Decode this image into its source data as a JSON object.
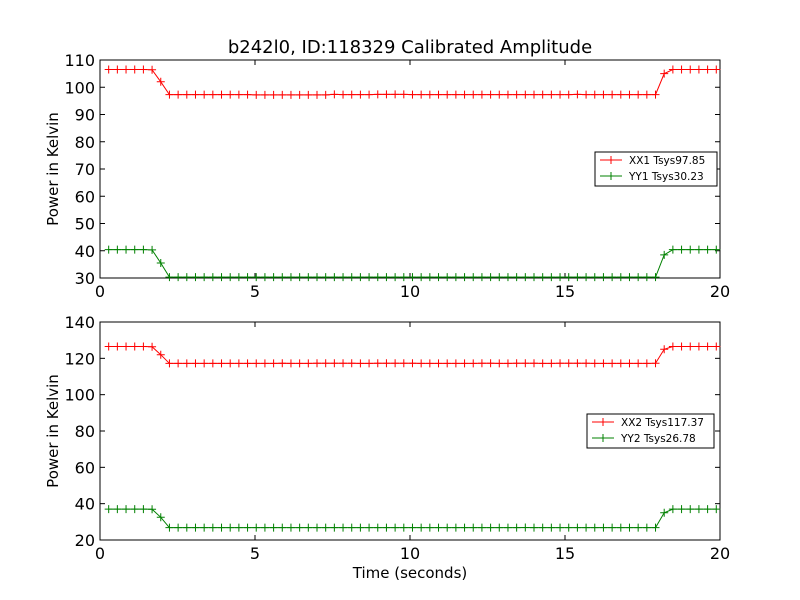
{
  "figure": {
    "title": "b242l0, ID:118329 Calibrated Amplitude",
    "xlabel": "Time (seconds)"
  },
  "chart_data": [
    {
      "type": "line",
      "ylabel": "Power in Kelvin",
      "xlabel": "",
      "xlim": [
        0,
        20
      ],
      "ylim": [
        30,
        110
      ],
      "xticks": [
        0,
        5,
        10,
        15,
        20
      ],
      "yticks": [
        30,
        40,
        50,
        60,
        70,
        80,
        90,
        100,
        110
      ],
      "grid": false,
      "legend_position": "right",
      "series": [
        {
          "name": "XX1 Tsys97.85",
          "color": "#ff0000",
          "marker": "plus",
          "x": [
            0.28,
            0.56,
            0.84,
            1.12,
            1.4,
            1.68,
            1.96,
            2.24,
            2.52,
            2.8,
            3.08,
            3.36,
            3.64,
            3.92,
            4.2,
            4.48,
            4.76,
            5.04,
            5.32,
            5.6,
            5.88,
            6.16,
            6.44,
            6.72,
            7.0,
            7.28,
            7.56,
            7.84,
            8.12,
            8.4,
            8.68,
            8.96,
            9.24,
            9.52,
            9.8,
            10.08,
            10.36,
            10.64,
            10.92,
            11.2,
            11.48,
            11.76,
            12.04,
            12.32,
            12.6,
            12.88,
            13.16,
            13.44,
            13.72,
            14.0,
            14.28,
            14.56,
            14.84,
            15.12,
            15.4,
            15.68,
            15.96,
            16.24,
            16.52,
            16.8,
            17.08,
            17.36,
            17.64,
            17.92,
            18.2,
            18.48,
            18.76,
            19.04,
            19.32,
            19.6,
            19.88
          ],
          "y": [
            106.5,
            106.5,
            106.5,
            106.5,
            106.5,
            106.4,
            102.0,
            97.3,
            97.3,
            97.3,
            97.3,
            97.3,
            97.3,
            97.3,
            97.3,
            97.3,
            97.3,
            97.2,
            97.2,
            97.2,
            97.2,
            97.2,
            97.2,
            97.2,
            97.2,
            97.2,
            97.4,
            97.3,
            97.3,
            97.3,
            97.3,
            97.4,
            97.4,
            97.4,
            97.4,
            97.3,
            97.3,
            97.3,
            97.3,
            97.3,
            97.3,
            97.3,
            97.3,
            97.3,
            97.3,
            97.3,
            97.3,
            97.3,
            97.3,
            97.3,
            97.3,
            97.3,
            97.3,
            97.3,
            97.4,
            97.3,
            97.3,
            97.3,
            97.3,
            97.3,
            97.3,
            97.3,
            97.3,
            97.3,
            105.0,
            106.5,
            106.5,
            106.5,
            106.5,
            106.5,
            106.5
          ]
        },
        {
          "name": "YY1 Tsys30.23",
          "color": "#008000",
          "marker": "plus",
          "x": [
            0.28,
            0.56,
            0.84,
            1.12,
            1.4,
            1.68,
            1.96,
            2.24,
            2.52,
            2.8,
            3.08,
            3.36,
            3.64,
            3.92,
            4.2,
            4.48,
            4.76,
            5.04,
            5.32,
            5.6,
            5.88,
            6.16,
            6.44,
            6.72,
            7.0,
            7.28,
            7.56,
            7.84,
            8.12,
            8.4,
            8.68,
            8.96,
            9.24,
            9.52,
            9.8,
            10.08,
            10.36,
            10.64,
            10.92,
            11.2,
            11.48,
            11.76,
            12.04,
            12.32,
            12.6,
            12.88,
            13.16,
            13.44,
            13.72,
            14.0,
            14.28,
            14.56,
            14.84,
            15.12,
            15.4,
            15.68,
            15.96,
            16.24,
            16.52,
            16.8,
            17.08,
            17.36,
            17.64,
            17.92,
            18.2,
            18.48,
            18.76,
            19.04,
            19.32,
            19.6,
            19.88
          ],
          "y": [
            40.4,
            40.4,
            40.4,
            40.4,
            40.4,
            40.3,
            35.5,
            30.3,
            30.3,
            30.3,
            30.3,
            30.3,
            30.3,
            30.3,
            30.3,
            30.3,
            30.3,
            30.3,
            30.3,
            30.3,
            30.3,
            30.3,
            30.3,
            30.3,
            30.3,
            30.3,
            30.3,
            30.3,
            30.3,
            30.3,
            30.3,
            30.3,
            30.3,
            30.3,
            30.3,
            30.3,
            30.3,
            30.3,
            30.3,
            30.3,
            30.3,
            30.3,
            30.3,
            30.3,
            30.3,
            30.3,
            30.3,
            30.3,
            30.3,
            30.3,
            30.3,
            30.3,
            30.3,
            30.3,
            30.3,
            30.3,
            30.3,
            30.3,
            30.3,
            30.3,
            30.3,
            30.3,
            30.3,
            30.3,
            38.5,
            40.4,
            40.4,
            40.4,
            40.4,
            40.4,
            40.4
          ]
        }
      ]
    },
    {
      "type": "line",
      "ylabel": "Power in Kelvin",
      "xlabel": "Time (seconds)",
      "xlim": [
        0,
        20
      ],
      "ylim": [
        20,
        140
      ],
      "xticks": [
        0,
        5,
        10,
        15,
        20
      ],
      "yticks": [
        20,
        40,
        60,
        80,
        100,
        120,
        140
      ],
      "grid": false,
      "legend_position": "right",
      "series": [
        {
          "name": "XX2 Tsys117.37",
          "color": "#ff0000",
          "marker": "plus",
          "x": [
            0.28,
            0.56,
            0.84,
            1.12,
            1.4,
            1.68,
            1.96,
            2.24,
            2.52,
            2.8,
            3.08,
            3.36,
            3.64,
            3.92,
            4.2,
            4.48,
            4.76,
            5.04,
            5.32,
            5.6,
            5.88,
            6.16,
            6.44,
            6.72,
            7.0,
            7.28,
            7.56,
            7.84,
            8.12,
            8.4,
            8.68,
            8.96,
            9.24,
            9.52,
            9.8,
            10.08,
            10.36,
            10.64,
            10.92,
            11.2,
            11.48,
            11.76,
            12.04,
            12.32,
            12.6,
            12.88,
            13.16,
            13.44,
            13.72,
            14.0,
            14.28,
            14.56,
            14.84,
            15.12,
            15.4,
            15.68,
            15.96,
            16.24,
            16.52,
            16.8,
            17.08,
            17.36,
            17.64,
            17.92,
            18.2,
            18.48,
            18.76,
            19.04,
            19.32,
            19.6,
            19.88
          ],
          "y": [
            126.5,
            126.5,
            126.5,
            126.5,
            126.5,
            126.4,
            122.0,
            117.2,
            117.2,
            117.2,
            117.2,
            117.2,
            117.2,
            117.2,
            117.2,
            117.2,
            117.2,
            117.2,
            117.2,
            117.2,
            117.3,
            117.2,
            117.2,
            117.2,
            117.3,
            117.3,
            117.3,
            117.3,
            117.3,
            117.2,
            117.2,
            117.3,
            117.3,
            117.3,
            117.3,
            117.3,
            117.2,
            117.2,
            117.2,
            117.2,
            117.2,
            117.2,
            117.2,
            117.3,
            117.3,
            117.2,
            117.2,
            117.3,
            117.3,
            117.3,
            117.2,
            117.2,
            117.3,
            117.3,
            117.3,
            117.3,
            117.2,
            117.2,
            117.2,
            117.2,
            117.2,
            117.2,
            117.2,
            117.3,
            125.0,
            126.5,
            126.5,
            126.5,
            126.5,
            126.5,
            126.5
          ]
        },
        {
          "name": "YY2 Tsys26.78",
          "color": "#008000",
          "marker": "plus",
          "x": [
            0.28,
            0.56,
            0.84,
            1.12,
            1.4,
            1.68,
            1.96,
            2.24,
            2.52,
            2.8,
            3.08,
            3.36,
            3.64,
            3.92,
            4.2,
            4.48,
            4.76,
            5.04,
            5.32,
            5.6,
            5.88,
            6.16,
            6.44,
            6.72,
            7.0,
            7.28,
            7.56,
            7.84,
            8.12,
            8.4,
            8.68,
            8.96,
            9.24,
            9.52,
            9.8,
            10.08,
            10.36,
            10.64,
            10.92,
            11.2,
            11.48,
            11.76,
            12.04,
            12.32,
            12.6,
            12.88,
            13.16,
            13.44,
            13.72,
            14.0,
            14.28,
            14.56,
            14.84,
            15.12,
            15.4,
            15.68,
            15.96,
            16.24,
            16.52,
            16.8,
            17.08,
            17.36,
            17.64,
            17.92,
            18.2,
            18.48,
            18.76,
            19.04,
            19.32,
            19.6,
            19.88
          ],
          "y": [
            37.0,
            37.0,
            37.0,
            37.0,
            37.0,
            36.9,
            32.5,
            26.8,
            26.8,
            26.8,
            26.8,
            26.8,
            26.8,
            26.8,
            26.8,
            26.8,
            26.8,
            26.8,
            26.8,
            26.8,
            26.8,
            26.8,
            26.8,
            26.8,
            26.8,
            26.8,
            26.8,
            26.8,
            26.8,
            26.8,
            26.8,
            26.8,
            26.8,
            26.8,
            26.8,
            26.8,
            26.8,
            26.8,
            26.8,
            26.8,
            26.8,
            26.8,
            26.8,
            26.8,
            26.8,
            26.8,
            26.8,
            26.8,
            26.9,
            26.8,
            26.8,
            26.8,
            26.8,
            26.8,
            26.8,
            26.8,
            26.8,
            26.8,
            26.8,
            26.8,
            26.8,
            26.8,
            26.8,
            26.8,
            35.0,
            37.0,
            37.0,
            37.0,
            37.0,
            37.0,
            37.0
          ]
        }
      ]
    }
  ]
}
